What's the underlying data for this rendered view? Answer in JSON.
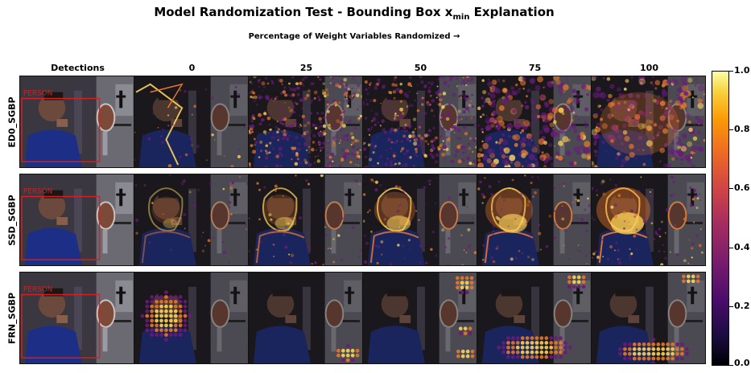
{
  "figure": {
    "title_main": "Model Randomization Test - Bounding Box x",
    "title_sub": "min",
    "title_end": " Explanation",
    "subtitle": "Percentage of Weight Variables Randomized →",
    "column_headers": [
      "Detections",
      "0",
      "25",
      "50",
      "75",
      "100"
    ],
    "row_labels": [
      "ED0_SGBP",
      "SSD_SGBP",
      "FRN_SGBP"
    ],
    "detection_label": "PERSON"
  },
  "colorbar": {
    "ticks": [
      "1.0",
      "0.8",
      "0.6",
      "0.4",
      "0.2",
      "0.0"
    ],
    "colormap": "inferno",
    "range": [
      0.0,
      1.0
    ]
  },
  "colors": {
    "box": "#d42020",
    "scene_dark": "#2d2b31",
    "shirt": "#1c2e86",
    "hot": "#fbd45a",
    "warm": "#e8772a",
    "purple": "#6a1b7a"
  }
}
